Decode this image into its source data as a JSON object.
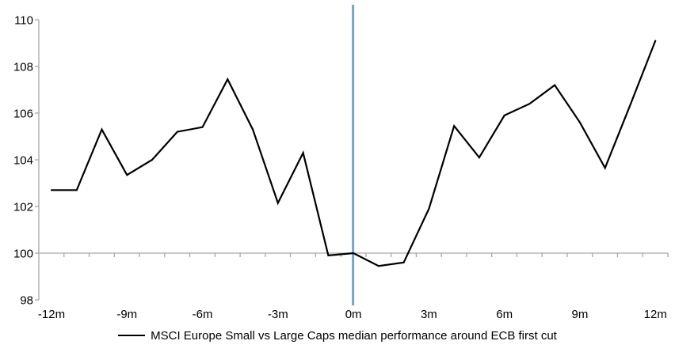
{
  "chart_data": {
    "type": "line",
    "title": "",
    "legend": "MSCI Europe Small vs Large Caps median performance around ECB first cut",
    "xlabel": "",
    "ylabel": "",
    "x_months": [
      -12,
      -11,
      -10,
      -9,
      -8,
      -7,
      -6,
      -5,
      -4,
      -3,
      -2,
      -1,
      0,
      1,
      2,
      3,
      4,
      5,
      6,
      7,
      8,
      9,
      10,
      11,
      12
    ],
    "series": [
      {
        "name": "MSCI Europe Small vs Large Caps median performance around ECB first cut",
        "values": [
          102.7,
          102.7,
          105.3,
          103.35,
          104.0,
          105.2,
          105.4,
          107.45,
          105.3,
          102.15,
          104.3,
          99.9,
          100.0,
          99.45,
          99.6,
          101.9,
          105.45,
          104.1,
          105.9,
          106.4,
          107.2,
          105.6,
          103.65,
          106.35,
          109.1
        ]
      }
    ],
    "x_tick_labels": [
      "-12m",
      "-9m",
      "-6m",
      "-3m",
      "0m",
      "3m",
      "6m",
      "9m",
      "12m"
    ],
    "x_tick_months": [
      -12,
      -9,
      -6,
      -3,
      0,
      3,
      6,
      9,
      12
    ],
    "y_tick_labels": [
      "98",
      "100",
      "102",
      "104",
      "106",
      "108",
      "110"
    ],
    "y_ticks": [
      98,
      100,
      102,
      104,
      106,
      108,
      110
    ],
    "ylim": [
      98,
      110
    ],
    "xlim_months": [
      -12,
      12
    ],
    "category_axis_crosses_at": 100,
    "event_line_month": 0,
    "grid": "off",
    "legend_position": "bottom-center",
    "colors": {
      "series_line": "#000000",
      "event_line": "#74A6CE",
      "axis_line": "#A6A6A6",
      "tick_text": "#000000",
      "background": "#FFFFFF"
    }
  }
}
